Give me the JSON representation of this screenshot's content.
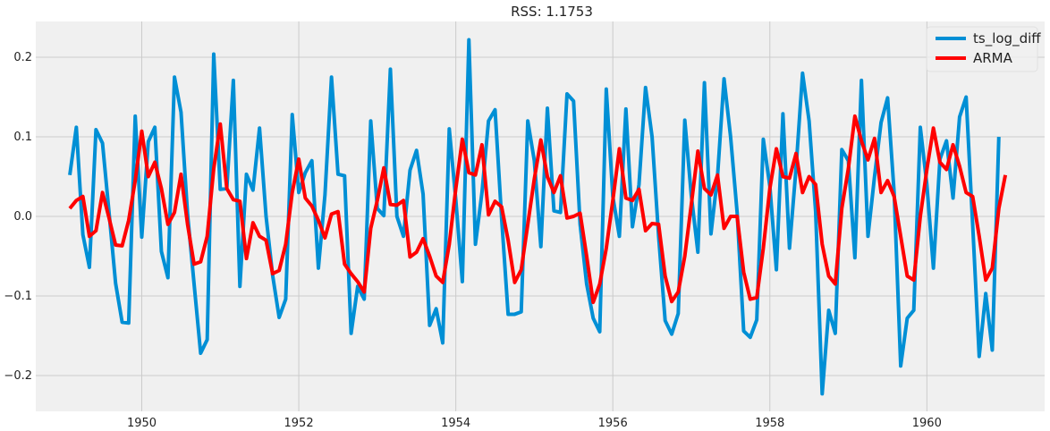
{
  "chart_data": {
    "type": "line",
    "title": "RSS: 1.1753",
    "xlabel": "",
    "ylabel": "",
    "xlim": [
      1948.65,
      1961.5
    ],
    "ylim": [
      -0.245,
      0.245
    ],
    "xticks": [
      1950,
      1952,
      1954,
      1956,
      1958,
      1960
    ],
    "yticks": [
      -0.2,
      -0.1,
      0.0,
      0.1,
      0.2
    ],
    "ytick_labels": [
      "−0.2",
      "−0.1",
      "0.0",
      "0.1",
      "0.2"
    ],
    "grid": true,
    "legend_position": "top-right",
    "x_start": 1949.0833,
    "x_step": 0.083333,
    "colors": {
      "background": "#f0f0f0",
      "grid": "#cbcbcb",
      "ts_log_diff": "#008fd5",
      "ARMA": "#ff0000"
    },
    "series": [
      {
        "name": "ts_log_diff",
        "values": [
          0.052,
          0.112,
          -0.023,
          -0.064,
          0.109,
          0.092,
          0.005,
          -0.084,
          -0.133,
          -0.134,
          0.126,
          -0.026,
          0.094,
          0.112,
          -0.044,
          -0.077,
          0.175,
          0.131,
          0.003,
          -0.085,
          -0.172,
          -0.155,
          0.204,
          0.034,
          0.035,
          0.171,
          -0.088,
          0.053,
          0.033,
          0.111,
          0.0,
          -0.074,
          -0.127,
          -0.104,
          0.128,
          0.03,
          0.055,
          0.07,
          -0.065,
          0.027,
          0.175,
          0.053,
          0.051,
          -0.147,
          -0.088,
          -0.104,
          0.12,
          0.01,
          0.001,
          0.185,
          0.0,
          -0.025,
          0.058,
          0.083,
          0.028,
          -0.137,
          -0.116,
          -0.159,
          0.11,
          0.021,
          -0.082,
          0.222,
          -0.035,
          0.03,
          0.12,
          0.134,
          -0.002,
          -0.123,
          -0.123,
          -0.12,
          0.12,
          0.07,
          -0.038,
          0.136,
          0.007,
          0.005,
          0.154,
          0.145,
          -0.01,
          -0.085,
          -0.128,
          -0.145,
          0.16,
          0.025,
          -0.025,
          0.135,
          -0.013,
          0.04,
          0.162,
          0.1,
          -0.025,
          -0.131,
          -0.148,
          -0.122,
          0.121,
          0.026,
          -0.045,
          0.168,
          -0.022,
          0.05,
          0.173,
          0.1,
          0.005,
          -0.144,
          -0.152,
          -0.13,
          0.097,
          0.038,
          -0.067,
          0.129,
          -0.04,
          0.06,
          0.18,
          0.12,
          0.006,
          -0.223,
          -0.118,
          -0.147,
          0.084,
          0.07,
          -0.052,
          0.171,
          -0.025,
          0.05,
          0.118,
          0.149,
          0.03,
          -0.188,
          -0.128,
          -0.118,
          0.112,
          0.04,
          -0.065,
          0.072,
          0.095,
          0.023,
          0.125,
          0.15,
          -0.01,
          -0.176,
          -0.097,
          -0.168,
          0.1
        ]
      },
      {
        "name": "ARMA",
        "values": [
          0.01,
          0.02,
          0.025,
          -0.025,
          -0.018,
          0.03,
          -0.002,
          -0.036,
          -0.037,
          -0.005,
          0.045,
          0.107,
          0.05,
          0.068,
          0.035,
          -0.01,
          0.005,
          0.053,
          -0.01,
          -0.06,
          -0.057,
          -0.025,
          0.06,
          0.116,
          0.035,
          0.021,
          0.019,
          -0.053,
          -0.008,
          -0.025,
          -0.03,
          -0.072,
          -0.068,
          -0.035,
          0.03,
          0.072,
          0.023,
          0.013,
          -0.005,
          -0.027,
          0.003,
          0.006,
          -0.06,
          -0.072,
          -0.082,
          -0.095,
          -0.015,
          0.02,
          0.061,
          0.015,
          0.014,
          0.02,
          -0.051,
          -0.045,
          -0.028,
          -0.05,
          -0.075,
          -0.083,
          -0.035,
          0.035,
          0.097,
          0.055,
          0.052,
          0.09,
          0.002,
          0.019,
          0.012,
          -0.03,
          -0.083,
          -0.067,
          -0.01,
          0.047,
          0.096,
          0.05,
          0.03,
          0.051,
          -0.002,
          0.0,
          0.004,
          -0.05,
          -0.108,
          -0.085,
          -0.04,
          0.02,
          0.085,
          0.023,
          0.02,
          0.034,
          -0.018,
          -0.009,
          -0.01,
          -0.075,
          -0.107,
          -0.095,
          -0.05,
          0.015,
          0.082,
          0.035,
          0.027,
          0.052,
          -0.015,
          0.0,
          0.0,
          -0.07,
          -0.104,
          -0.102,
          -0.04,
          0.035,
          0.085,
          0.05,
          0.048,
          0.079,
          0.03,
          0.05,
          0.04,
          -0.035,
          -0.075,
          -0.085,
          0.01,
          0.06,
          0.126,
          0.095,
          0.071,
          0.098,
          0.03,
          0.045,
          0.025,
          -0.025,
          -0.075,
          -0.08,
          0.0,
          0.059,
          0.111,
          0.068,
          0.059,
          0.09,
          0.063,
          0.03,
          0.025,
          -0.025,
          -0.08,
          -0.065,
          0.01,
          0.052
        ]
      }
    ]
  }
}
